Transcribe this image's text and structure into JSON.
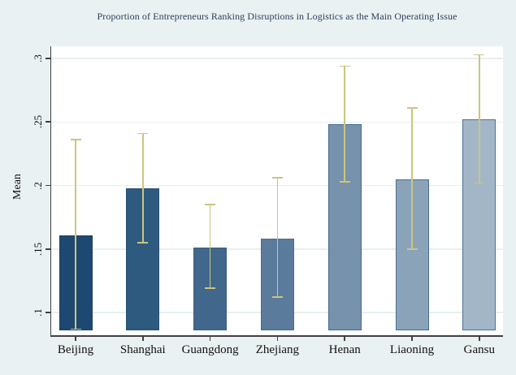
{
  "title": "Proportion of Entrepreneurs Ranking Disruptions in Logistics as the Main Operating Issue",
  "y_axis": {
    "label": "Mean",
    "tick_labels": [
      ".1",
      ".15",
      ".2",
      ".25",
      ".3"
    ]
  },
  "chart_data": {
    "type": "bar",
    "title": "Proportion of Entrepreneurs Ranking Disruptions in Logistics as the Main Operating Issue",
    "xlabel": "",
    "ylabel": "Mean",
    "categories": [
      "Beijing",
      "Shanghai",
      "Guangdong",
      "Zhejiang",
      "Henan",
      "Liaoning",
      "Gansu"
    ],
    "values": [
      0.161,
      0.198,
      0.151,
      0.158,
      0.248,
      0.205,
      0.252
    ],
    "error_low": [
      0.087,
      0.155,
      0.119,
      0.112,
      0.203,
      0.15,
      0.202
    ],
    "error_high": [
      0.236,
      0.241,
      0.185,
      0.206,
      0.294,
      0.261,
      0.303
    ],
    "yticks": [
      0.1,
      0.15,
      0.2,
      0.25,
      0.3
    ],
    "ytick_labels": [
      ".1",
      ".15",
      ".2",
      ".25",
      ".3"
    ],
    "ylim": [
      0.081,
      0.31
    ],
    "bar_base_value": 0.086,
    "grid": true,
    "legend": "none",
    "bar_colors": [
      "#1d4871",
      "#2f5a7f",
      "#41688c",
      "#5a7b9b",
      "#7792ac",
      "#8ba3b9",
      "#a3b6c8"
    ],
    "bar_border_colors": [
      "#1a4066",
      "#285178",
      "#3a5f80",
      "#4d6c8a",
      "#456a90",
      "#4a6c90",
      "#4f7094"
    ],
    "error_bar_color": "#ccc57e",
    "background_color": "#eaf1f2",
    "plot_background_color": "#ffffff",
    "grid_color": "#e6eff3",
    "axis_color": "#404040",
    "title_color": "#2c3e5d"
  }
}
